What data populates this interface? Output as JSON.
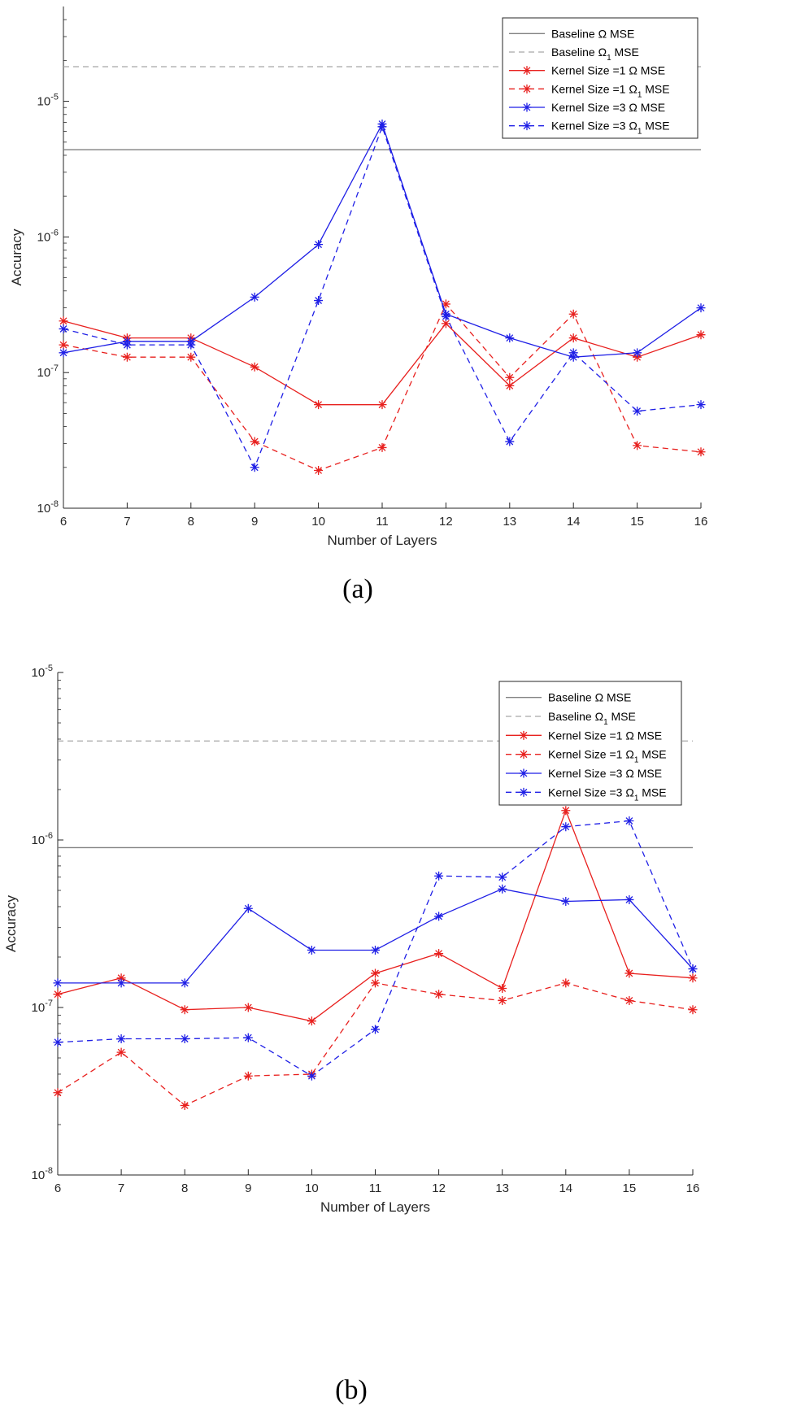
{
  "chart_data": [
    {
      "type": "line",
      "caption": "(a)",
      "xlabel": "Number of Layers",
      "ylabel": "Accuracy",
      "yscale": "log",
      "ylim": [
        1e-08,
        5e-05
      ],
      "xlim": [
        6,
        16
      ],
      "x": [
        6,
        7,
        8,
        9,
        10,
        11,
        12,
        13,
        14,
        15,
        16
      ],
      "xticks": [
        "6",
        "7",
        "8",
        "9",
        "10",
        "11",
        "12",
        "13",
        "14",
        "15",
        "16"
      ],
      "ytick_base": "10",
      "yticks": [
        {
          "exp": "-8",
          "value": 1e-08
        },
        {
          "exp": "-7",
          "value": 1e-07
        },
        {
          "exp": "-6",
          "value": 1e-06
        },
        {
          "exp": "-5",
          "value": 1e-05
        }
      ],
      "legend_position": "top-right",
      "baselines": [
        {
          "name": "Baseline Ω MSE",
          "label_main": "Baseline Ω MSE",
          "label_sub": "",
          "label_tail": "",
          "value": 4.4e-06,
          "style": "solid",
          "color": "#808080"
        },
        {
          "name": "Baseline Ω1 MSE",
          "label_main": "Baseline Ω",
          "label_sub": "1",
          "label_tail": " MSE",
          "value": 1.8e-05,
          "style": "dashed",
          "color": "#a6a6a6"
        }
      ],
      "series": [
        {
          "name": "Kernel Size =1 Ω MSE",
          "label_main": "Kernel Size =1 Ω MSE",
          "label_sub": "",
          "label_tail": "",
          "color": "#e8201e",
          "style": "solid",
          "values": [
            2.4e-07,
            1.8e-07,
            1.8e-07,
            1.1e-07,
            5.8e-08,
            5.8e-08,
            2.3e-07,
            8e-08,
            1.8e-07,
            1.3e-07,
            1.9e-07
          ]
        },
        {
          "name": "Kernel Size =1 Ω1 MSE",
          "label_main": "Kernel Size =1 Ω",
          "label_sub": "1",
          "label_tail": " MSE",
          "color": "#e8201e",
          "style": "dashed",
          "values": [
            1.6e-07,
            1.3e-07,
            1.3e-07,
            3.1e-08,
            1.9e-08,
            2.8e-08,
            3.2e-07,
            9.2e-08,
            2.7e-07,
            2.9e-08,
            2.6e-08
          ]
        },
        {
          "name": "Kernel Size =3 Ω MSE",
          "label_main": "Kernel Size =3 Ω MSE",
          "label_sub": "",
          "label_tail": "",
          "color": "#1f1fe6",
          "style": "solid",
          "values": [
            1.4e-07,
            1.7e-07,
            1.7e-07,
            3.6e-07,
            8.8e-07,
            6.8e-06,
            2.7e-07,
            1.8e-07,
            1.3e-07,
            1.4e-07,
            3e-07
          ]
        },
        {
          "name": "Kernel Size =3 Ω1 MSE",
          "label_main": "Kernel Size =3 Ω",
          "label_sub": "1",
          "label_tail": " MSE",
          "color": "#1f1fe6",
          "style": "dashed",
          "values": [
            2.1e-07,
            1.6e-07,
            1.6e-07,
            2e-08,
            3.4e-07,
            6.5e-06,
            2.6e-07,
            3.1e-08,
            1.4e-07,
            5.2e-08,
            5.8e-08
          ]
        }
      ]
    },
    {
      "type": "line",
      "caption": "(b)",
      "xlabel": "Number of Layers",
      "ylabel": "Accuracy",
      "yscale": "log",
      "ylim": [
        1e-08,
        1e-05
      ],
      "xlim": [
        6,
        16
      ],
      "x": [
        6,
        7,
        8,
        9,
        10,
        11,
        12,
        13,
        14,
        15,
        16
      ],
      "xticks": [
        "6",
        "7",
        "8",
        "9",
        "10",
        "11",
        "12",
        "13",
        "14",
        "15",
        "16"
      ],
      "ytick_base": "10",
      "yticks": [
        {
          "exp": "-8",
          "value": 1e-08
        },
        {
          "exp": "-7",
          "value": 1e-07
        },
        {
          "exp": "-6",
          "value": 1e-06
        },
        {
          "exp": "-5",
          "value": 1e-05
        }
      ],
      "legend_position": "top-right",
      "baselines": [
        {
          "name": "Baseline Ω MSE",
          "label_main": "Baseline Ω MSE",
          "label_sub": "",
          "label_tail": "",
          "value": 9e-07,
          "style": "solid",
          "color": "#808080"
        },
        {
          "name": "Baseline Ω1 MSE",
          "label_main": "Baseline Ω",
          "label_sub": "1",
          "label_tail": " MSE",
          "value": 3.9e-06,
          "style": "dashed",
          "color": "#a6a6a6"
        }
      ],
      "series": [
        {
          "name": "Kernel Size =1 Ω MSE",
          "label_main": "Kernel Size =1 Ω MSE",
          "label_sub": "",
          "label_tail": "",
          "color": "#e8201e",
          "style": "solid",
          "values": [
            1.2e-07,
            1.5e-07,
            9.7e-08,
            1e-07,
            8.3e-08,
            1.6e-07,
            2.1e-07,
            1.3e-07,
            1.5e-06,
            1.6e-07,
            1.5e-07
          ]
        },
        {
          "name": "Kernel Size =1 Ω1 MSE",
          "label_main": "Kernel Size =1 Ω",
          "label_sub": "1",
          "label_tail": " MSE",
          "color": "#e8201e",
          "style": "dashed",
          "values": [
            3.1e-08,
            5.4e-08,
            2.6e-08,
            3.9e-08,
            4e-08,
            1.4e-07,
            1.2e-07,
            1.1e-07,
            1.4e-07,
            1.1e-07,
            9.7e-08
          ]
        },
        {
          "name": "Kernel Size =3 Ω MSE",
          "label_main": "Kernel Size =3 Ω MSE",
          "label_sub": "",
          "label_tail": "",
          "color": "#1f1fe6",
          "style": "solid",
          "values": [
            1.4e-07,
            1.4e-07,
            1.4e-07,
            3.9e-07,
            2.2e-07,
            2.2e-07,
            3.5e-07,
            5.1e-07,
            4.3e-07,
            4.4e-07,
            1.7e-07
          ]
        },
        {
          "name": "Kernel Size =3 Ω1 MSE",
          "label_main": "Kernel Size =3 Ω",
          "label_sub": "1",
          "label_tail": " MSE",
          "color": "#1f1fe6",
          "style": "dashed",
          "values": [
            6.2e-08,
            6.5e-08,
            6.5e-08,
            6.6e-08,
            3.9e-08,
            7.4e-08,
            6.1e-07,
            6e-07,
            1.2e-06,
            1.3e-06,
            1.7e-07
          ]
        }
      ]
    }
  ]
}
